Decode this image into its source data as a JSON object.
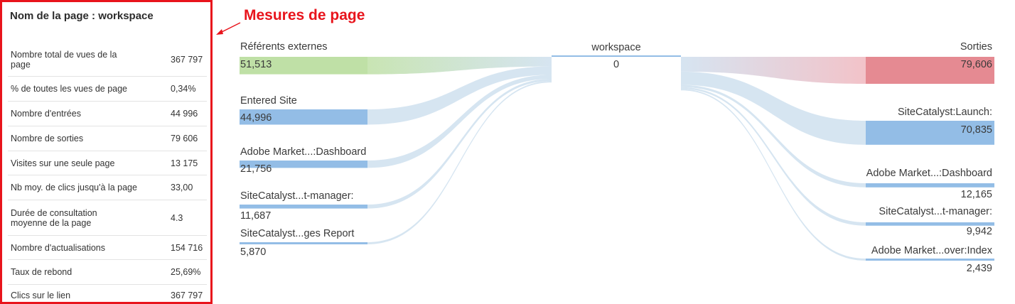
{
  "panel": {
    "title": "Nom de la page : workspace",
    "metrics": [
      {
        "label": "Nombre total de vues de la page",
        "value": "367 797"
      },
      {
        "label": "% de toutes les vues de page",
        "value": "0,34%"
      },
      {
        "label": "Nombre d'entrées",
        "value": "44 996"
      },
      {
        "label": "Nombre de sorties",
        "value": "79 606"
      },
      {
        "label": "Visites sur une seule page",
        "value": "13 175"
      },
      {
        "label": "Nb moy. de clics jusqu'à la page",
        "value": "33,00"
      },
      {
        "label": "Durée de consultation moyenne de la page",
        "value": "4.3"
      },
      {
        "label": "Nombre d'actualisations",
        "value": "154 716"
      },
      {
        "label": "Taux de rebond",
        "value": "25,69%"
      },
      {
        "label": "Clics sur le lien",
        "value": "367 797"
      }
    ]
  },
  "annotation": {
    "text": "Mesures de page",
    "color": "#e8141c"
  },
  "flow": {
    "center": {
      "label": "workspace",
      "value": "0"
    },
    "entries": [
      {
        "label": "Référents externes",
        "value": "51,513",
        "count": 51513,
        "color": "#bfe0a6"
      },
      {
        "label": "Entered Site",
        "value": "44,996",
        "count": 44996,
        "color": "#93bde6"
      },
      {
        "label": "Adobe Market...:Dashboard",
        "value": "21,756",
        "count": 21756,
        "color": "#93bde6"
      },
      {
        "label": "SiteCatalyst...t-manager:",
        "value": "11,687",
        "count": 11687,
        "color": "#93bde6"
      },
      {
        "label": "SiteCatalyst...ges Report",
        "value": "5,870",
        "count": 5870,
        "color": "#93bde6"
      }
    ],
    "exits": [
      {
        "label": "Sorties",
        "value": "79,606",
        "count": 79606,
        "color": "#e58a92"
      },
      {
        "label": "SiteCatalyst:Launch:",
        "value": "70,835",
        "count": 70835,
        "color": "#93bde6"
      },
      {
        "label": "Adobe Market...:Dashboard",
        "value": "12,165",
        "count": 12165,
        "color": "#93bde6"
      },
      {
        "label": "SiteCatalyst...t-manager:",
        "value": "9,942",
        "count": 9942,
        "color": "#93bde6"
      },
      {
        "label": "Adobe Market...over:Index",
        "value": "2,439",
        "count": 2439,
        "color": "#93bde6"
      }
    ],
    "link_color": "#cfe0ef"
  }
}
